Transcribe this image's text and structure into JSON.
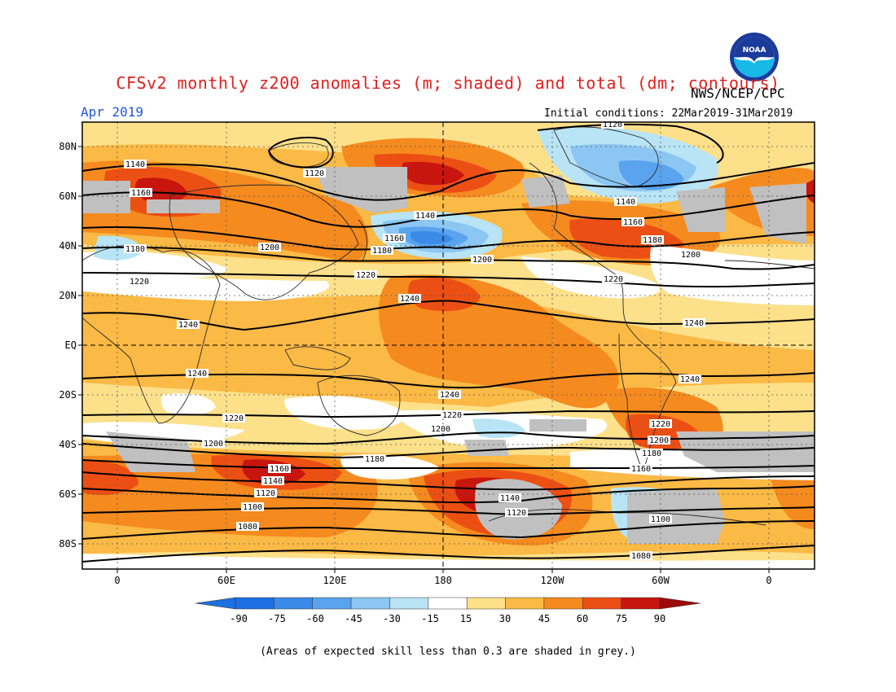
{
  "title": "CFSv2 monthly z200 anomalies (m; shaded) and total (dm; contours)",
  "agency": "NWS/NCEP/CPC",
  "logo_text": "NOAA",
  "month": "Apr 2019",
  "initial_conditions": "Initial conditions: 22Mar2019-31Mar2019",
  "lat_labels": [
    "80N",
    "60N",
    "40N",
    "20N",
    "EQ",
    "20S",
    "40S",
    "60S",
    "80S"
  ],
  "lon_labels": [
    "0",
    "60E",
    "120E",
    "180",
    "120W",
    "60W",
    "0"
  ],
  "colorbar": {
    "labels": [
      "-90",
      "-75",
      "-60",
      "-45",
      "-30",
      "-15",
      "15",
      "30",
      "45",
      "60",
      "75",
      "90"
    ],
    "colors": [
      "#1e6fe0",
      "#3c8ae8",
      "#5aa3ee",
      "#8cc6f3",
      "#b8e4f5",
      "#ffffff",
      "#fde08a",
      "#fbb945",
      "#f58a1f",
      "#ec4f14",
      "#c8150e"
    ],
    "left_arrow_color": "#1e6fe0",
    "right_arrow_color": "#9e0a0a"
  },
  "contour_labels": [
    "1120",
    "1140",
    "1160",
    "1180",
    "1200",
    "1220",
    "1240",
    "1240",
    "1240",
    "1240",
    "1220",
    "1200",
    "1180",
    "1160",
    "1140",
    "1120",
    "1100",
    "1080",
    "1140",
    "1120",
    "1160",
    "1180",
    "1200",
    "1220",
    "1240",
    "1240",
    "1220",
    "1200",
    "1180",
    "1160",
    "1140",
    "1120",
    "1100",
    "1080"
  ],
  "note": "(Areas of expected skill less than 0.3 are shaded in grey.)"
}
